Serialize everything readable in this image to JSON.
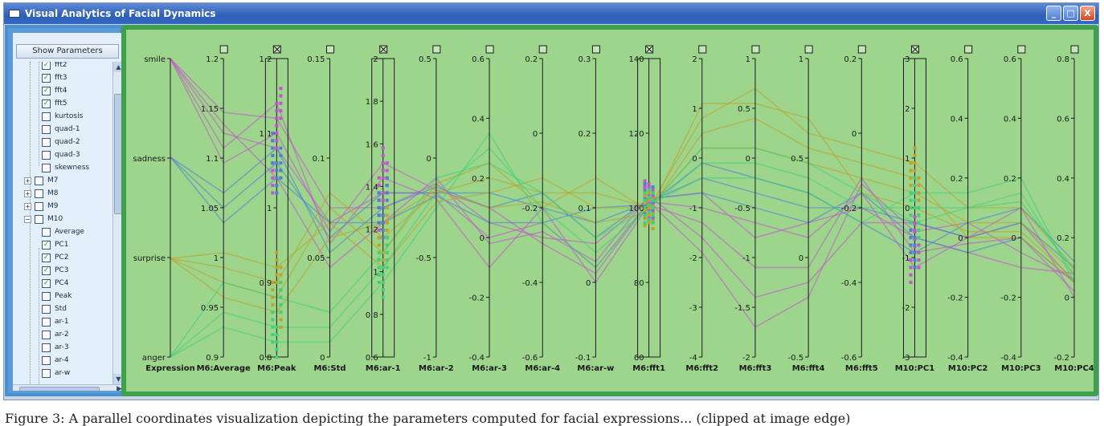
{
  "window": {
    "title": "Visual Analytics of Facial Dynamics",
    "buttons": [
      "_",
      "□",
      "X"
    ]
  },
  "left_panel": {
    "show_parameters_label": "Show Parameters",
    "tree": [
      {
        "label": "fft2",
        "checked": true,
        "level": 2
      },
      {
        "label": "fft3",
        "checked": true,
        "level": 2
      },
      {
        "label": "fft4",
        "checked": true,
        "level": 2
      },
      {
        "label": "fft5",
        "checked": true,
        "level": 2
      },
      {
        "label": "kurtosis",
        "checked": false,
        "level": 2
      },
      {
        "label": "quad-1",
        "checked": false,
        "level": 2
      },
      {
        "label": "quad-2",
        "checked": false,
        "level": 2
      },
      {
        "label": "quad-3",
        "checked": false,
        "level": 2
      },
      {
        "label": "skewness",
        "checked": false,
        "level": 2
      },
      {
        "label": "M7",
        "checked": false,
        "level": 1,
        "expander": "+"
      },
      {
        "label": "M8",
        "checked": false,
        "level": 1,
        "expander": "+"
      },
      {
        "label": "M9",
        "checked": false,
        "level": 1,
        "expander": "+"
      },
      {
        "label": "M10",
        "checked": false,
        "level": 1,
        "expander": "−"
      },
      {
        "label": "Average",
        "checked": false,
        "level": 2
      },
      {
        "label": "PC1",
        "checked": true,
        "level": 2
      },
      {
        "label": "PC2",
        "checked": true,
        "level": 2
      },
      {
        "label": "PC3",
        "checked": true,
        "level": 2
      },
      {
        "label": "PC4",
        "checked": true,
        "level": 2
      },
      {
        "label": "Peak",
        "checked": false,
        "level": 2
      },
      {
        "label": "Std",
        "checked": false,
        "level": 2
      },
      {
        "label": "ar-1",
        "checked": false,
        "level": 2
      },
      {
        "label": "ar-2",
        "checked": false,
        "level": 2
      },
      {
        "label": "ar-3",
        "checked": false,
        "level": 2
      },
      {
        "label": "ar-4",
        "checked": false,
        "level": 2
      },
      {
        "label": "ar-w",
        "checked": false,
        "level": 2
      }
    ]
  },
  "colors": {
    "plot_bg": "#9dd58d",
    "plot_border": "#3ea04d",
    "panel_border": "#4a8fd0",
    "smile": "#c255c8",
    "sadness": "#4f7fd0",
    "surprise": "#c0a12a",
    "anger": "#3fd07a"
  },
  "chart_data": {
    "type": "parallel-coordinates",
    "axes": [
      {
        "name": "Expression",
        "ticks": [
          "smile",
          "sadness",
          "surprise",
          "anger"
        ],
        "categorical": true
      },
      {
        "name": "M6:Average",
        "ticks": [
          "1.2",
          "1.15",
          "1.1",
          "1.05",
          "1",
          "0.95",
          "0.9"
        ],
        "selected": false
      },
      {
        "name": "M6:Peak",
        "ticks": [
          "1.2",
          "1.1",
          "1",
          "0.9",
          "0.8"
        ],
        "selected": true
      },
      {
        "name": "M6:Std",
        "ticks": [
          "0.15",
          "0.1",
          "0.05",
          "0"
        ],
        "selected": false
      },
      {
        "name": "M6:ar-1",
        "ticks": [
          "2",
          "1.8",
          "1.6",
          "1.4",
          "1.2",
          "1",
          "0.8",
          "0.6"
        ],
        "selected": true
      },
      {
        "name": "M6:ar-2",
        "ticks": [
          "0.5",
          "0",
          "-0.5",
          "-1"
        ],
        "selected": false
      },
      {
        "name": "M6:ar-3",
        "ticks": [
          "0.6",
          "0.4",
          "0.2",
          "0",
          "-0.2",
          "-0.4"
        ],
        "selected": false
      },
      {
        "name": "M6:ar-4",
        "ticks": [
          "0.2",
          "0",
          "-0.2",
          "-0.4",
          "-0.6"
        ],
        "selected": false
      },
      {
        "name": "M6:ar-w",
        "ticks": [
          "0.3",
          "0.2",
          "0.1",
          "0",
          "-0.1"
        ],
        "selected": false
      },
      {
        "name": "M6:fft1",
        "ticks": [
          "140",
          "120",
          "100",
          "80",
          "60"
        ],
        "selected": true
      },
      {
        "name": "M6:fft2",
        "ticks": [
          "2",
          "1",
          "0",
          "-1",
          "-2",
          "-3",
          "-4"
        ],
        "selected": false
      },
      {
        "name": "M6:fft3",
        "ticks": [
          "1",
          "0.5",
          "0",
          "-0.5",
          "-1",
          "-1.5",
          "-2"
        ],
        "selected": false
      },
      {
        "name": "M6:fft4",
        "ticks": [
          "1",
          "0.5",
          "0",
          "-0.5"
        ],
        "selected": false
      },
      {
        "name": "M6:fft5",
        "ticks": [
          "0.2",
          "0",
          "-0.2",
          "-0.4",
          "-0.6"
        ],
        "selected": false
      },
      {
        "name": "M10:PC1",
        "ticks": [
          "3",
          "2",
          "1",
          "0",
          "-1",
          "-2",
          "-3"
        ],
        "selected": true
      },
      {
        "name": "M10:PC2",
        "ticks": [
          "0.6",
          "0.4",
          "0.2",
          "0",
          "-0.2",
          "-0.4"
        ],
        "selected": false
      },
      {
        "name": "M10:PC3",
        "ticks": [
          "0.6",
          "0.4",
          "0.2",
          "0",
          "-0.2",
          "-0.4"
        ],
        "selected": false
      },
      {
        "name": "M10:PC4",
        "ticks": [
          "0.8",
          "0.6",
          "0.4",
          "0.2",
          "0",
          "-0.2"
        ],
        "selected": false
      }
    ],
    "series": [
      {
        "name": "smile",
        "color": "#c255c8",
        "values": [
          0.0,
          0.25,
          0.3,
          0.55,
          0.45,
          0.45,
          0.6,
          0.55,
          0.7,
          0.48,
          0.5,
          0.55,
          0.6,
          0.45,
          0.7,
          0.6,
          0.55,
          0.75
        ]
      },
      {
        "name": "smile",
        "color": "#c255c8",
        "values": [
          0.0,
          0.18,
          0.2,
          0.5,
          0.5,
          0.42,
          0.55,
          0.6,
          0.62,
          0.47,
          0.45,
          0.6,
          0.55,
          0.5,
          0.6,
          0.65,
          0.7,
          0.72
        ]
      },
      {
        "name": "smile",
        "color": "#c255c8",
        "values": [
          0.0,
          0.3,
          0.15,
          0.62,
          0.4,
          0.47,
          0.7,
          0.5,
          0.75,
          0.49,
          0.55,
          0.7,
          0.7,
          0.4,
          0.65,
          0.62,
          0.6,
          0.78
        ]
      },
      {
        "name": "smile",
        "color": "#c255c8",
        "values": [
          0.0,
          0.22,
          0.4,
          0.7,
          0.55,
          0.4,
          0.62,
          0.58,
          0.68,
          0.46,
          0.6,
          0.8,
          0.75,
          0.55,
          0.55,
          0.6,
          0.5,
          0.8
        ]
      },
      {
        "name": "smile",
        "color": "#c255c8",
        "values": [
          0.0,
          0.35,
          0.25,
          0.58,
          0.35,
          0.44,
          0.5,
          0.62,
          0.72,
          0.48,
          0.65,
          0.9,
          0.8,
          0.42,
          0.58,
          0.55,
          0.65,
          0.74
        ]
      },
      {
        "name": "sadness",
        "color": "#4f7fd0",
        "values": [
          0.33,
          0.5,
          0.35,
          0.6,
          0.45,
          0.45,
          0.45,
          0.5,
          0.55,
          0.48,
          0.4,
          0.45,
          0.5,
          0.5,
          0.55,
          0.6,
          0.55,
          0.7
        ]
      },
      {
        "name": "sadness",
        "color": "#4f7fd0",
        "values": [
          0.33,
          0.45,
          0.3,
          0.65,
          0.5,
          0.43,
          0.5,
          0.45,
          0.6,
          0.47,
          0.45,
          0.5,
          0.55,
          0.45,
          0.6,
          0.65,
          0.6,
          0.75
        ]
      },
      {
        "name": "sadness",
        "color": "#4f7fd0",
        "values": [
          0.33,
          0.55,
          0.4,
          0.55,
          0.55,
          0.46,
          0.55,
          0.55,
          0.5,
          0.49,
          0.35,
          0.4,
          0.45,
          0.55,
          0.65,
          0.55,
          0.5,
          0.68
        ]
      },
      {
        "name": "surprise",
        "color": "#c0a12a",
        "values": [
          0.67,
          0.7,
          0.75,
          0.45,
          0.6,
          0.45,
          0.4,
          0.45,
          0.45,
          0.5,
          0.3,
          0.3,
          0.35,
          0.4,
          0.45,
          0.55,
          0.55,
          0.72
        ]
      },
      {
        "name": "surprise",
        "color": "#c0a12a",
        "values": [
          0.67,
          0.75,
          0.8,
          0.5,
          0.65,
          0.42,
          0.35,
          0.5,
          0.4,
          0.51,
          0.25,
          0.2,
          0.3,
          0.35,
          0.4,
          0.6,
          0.6,
          0.75
        ]
      },
      {
        "name": "surprise",
        "color": "#c0a12a",
        "values": [
          0.67,
          0.65,
          0.7,
          0.55,
          0.7,
          0.48,
          0.45,
          0.4,
          0.5,
          0.5,
          0.2,
          0.1,
          0.25,
          0.3,
          0.35,
          0.5,
          0.5,
          0.7
        ]
      },
      {
        "name": "surprise",
        "color": "#c0a12a",
        "values": [
          0.67,
          0.8,
          0.85,
          0.6,
          0.55,
          0.44,
          0.5,
          0.48,
          0.55,
          0.52,
          0.15,
          0.15,
          0.2,
          0.45,
          0.5,
          0.58,
          0.58,
          0.74
        ]
      },
      {
        "name": "anger",
        "color": "#3fd07a",
        "values": [
          1.0,
          0.85,
          0.9,
          0.9,
          0.7,
          0.45,
          0.3,
          0.5,
          0.65,
          0.5,
          0.35,
          0.35,
          0.4,
          0.5,
          0.5,
          0.5,
          0.45,
          0.73
        ]
      },
      {
        "name": "anger",
        "color": "#3fd07a",
        "values": [
          1.0,
          0.9,
          0.95,
          0.95,
          0.75,
          0.5,
          0.25,
          0.55,
          0.7,
          0.49,
          0.4,
          0.4,
          0.45,
          0.55,
          0.45,
          0.45,
          0.4,
          0.75
        ]
      },
      {
        "name": "anger",
        "color": "#3fd07a",
        "values": [
          1.0,
          0.75,
          0.8,
          0.85,
          0.65,
          0.4,
          0.35,
          0.45,
          0.6,
          0.5,
          0.3,
          0.3,
          0.35,
          0.45,
          0.55,
          0.5,
          0.48,
          0.71
        ]
      }
    ]
  },
  "caption": "Figure 3: A parallel coordinates visualization depicting the parameters computed for facial expressions... (clipped at image edge)"
}
